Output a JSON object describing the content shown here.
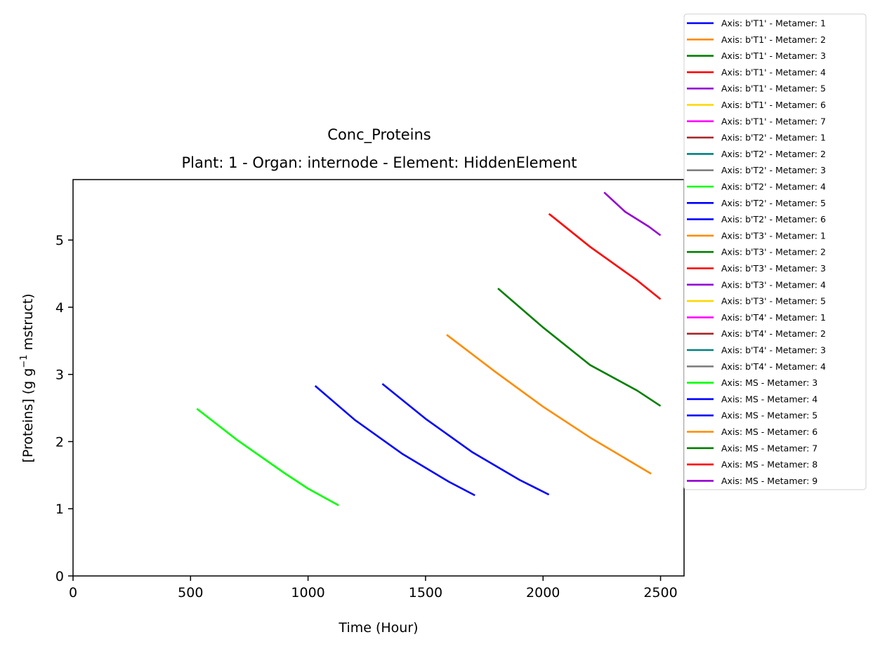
{
  "chart_data": {
    "type": "line",
    "title": "Conc_Proteins",
    "subtitle": "Plant: 1 - Organ: internode - Element: HiddenElement",
    "xlabel": "Time (Hour)",
    "ylabel_main": "[Proteins] (g g",
    "ylabel_sup": "−1",
    "ylabel_tail": " mstruct)",
    "xlim": [
      0,
      2600
    ],
    "ylim": [
      0,
      5.9
    ],
    "xticks": [
      0,
      500,
      1000,
      1500,
      2000,
      2500
    ],
    "yticks": [
      0,
      1,
      2,
      3,
      4,
      5
    ],
    "grid": false,
    "legend_position": "outside-right",
    "legend": [
      {
        "label": "Axis: b'T1' - Metamer: 1",
        "color": "#0000ff"
      },
      {
        "label": "Axis: b'T1' - Metamer: 2",
        "color": "#ff8c00"
      },
      {
        "label": "Axis: b'T1' - Metamer: 3",
        "color": "#008000"
      },
      {
        "label": "Axis: b'T1' - Metamer: 4",
        "color": "#ff0000"
      },
      {
        "label": "Axis: b'T1' - Metamer: 5",
        "color": "#9400d3"
      },
      {
        "label": "Axis: b'T1' - Metamer: 6",
        "color": "#ffd700"
      },
      {
        "label": "Axis: b'T1' - Metamer: 7",
        "color": "#ff00ff"
      },
      {
        "label": "Axis: b'T2' - Metamer: 1",
        "color": "#a52a2a"
      },
      {
        "label": "Axis: b'T2' - Metamer: 2",
        "color": "#008080"
      },
      {
        "label": "Axis: b'T2' - Metamer: 3",
        "color": "#808080"
      },
      {
        "label": "Axis: b'T2' - Metamer: 4",
        "color": "#00ff00"
      },
      {
        "label": "Axis: b'T2' - Metamer: 5",
        "color": "#0000ff"
      },
      {
        "label": "Axis: b'T2' - Metamer: 6",
        "color": "#0000ff"
      },
      {
        "label": "Axis: b'T3' - Metamer: 1",
        "color": "#ff8c00"
      },
      {
        "label": "Axis: b'T3' - Metamer: 2",
        "color": "#008000"
      },
      {
        "label": "Axis: b'T3' - Metamer: 3",
        "color": "#ff0000"
      },
      {
        "label": "Axis: b'T3' - Metamer: 4",
        "color": "#9400d3"
      },
      {
        "label": "Axis: b'T3' - Metamer: 5",
        "color": "#ffd700"
      },
      {
        "label": "Axis: b'T4' - Metamer: 1",
        "color": "#ff00ff"
      },
      {
        "label": "Axis: b'T4' - Metamer: 2",
        "color": "#a52a2a"
      },
      {
        "label": "Axis: b'T4' - Metamer: 3",
        "color": "#008080"
      },
      {
        "label": "Axis: b'T4' - Metamer: 4",
        "color": "#808080"
      },
      {
        "label": "Axis: MS - Metamer: 3",
        "color": "#00ff00"
      },
      {
        "label": "Axis: MS - Metamer: 4",
        "color": "#0000ff"
      },
      {
        "label": "Axis: MS - Metamer: 5",
        "color": "#0000ff"
      },
      {
        "label": "Axis: MS - Metamer: 6",
        "color": "#ff8c00"
      },
      {
        "label": "Axis: MS - Metamer: 7",
        "color": "#008000"
      },
      {
        "label": "Axis: MS - Metamer: 8",
        "color": "#ff0000"
      },
      {
        "label": "Axis: MS - Metamer: 9",
        "color": "#9400d3"
      }
    ],
    "series": [
      {
        "name": "Axis: MS - Metamer: 3",
        "color": "#00ff00",
        "x": [
          527,
          700,
          900,
          1000,
          1130
        ],
        "y": [
          2.49,
          2.02,
          1.53,
          1.3,
          1.05
        ]
      },
      {
        "name": "Axis: MS - Metamer: 4",
        "color": "#0000ff",
        "x": [
          1030,
          1200,
          1400,
          1600,
          1710
        ],
        "y": [
          2.83,
          2.32,
          1.82,
          1.4,
          1.2
        ]
      },
      {
        "name": "Axis: MS - Metamer: 5",
        "color": "#0000ff",
        "x": [
          1316,
          1500,
          1700,
          1900,
          2025
        ],
        "y": [
          2.86,
          2.34,
          1.84,
          1.43,
          1.21
        ]
      },
      {
        "name": "Axis: MS - Metamer: 6",
        "color": "#ff8c00",
        "x": [
          1590,
          1800,
          2000,
          2200,
          2460
        ],
        "y": [
          3.59,
          3.03,
          2.52,
          2.06,
          1.52
        ]
      },
      {
        "name": "Axis: MS - Metamer: 7",
        "color": "#008000",
        "x": [
          1808,
          2000,
          2200,
          2400,
          2500
        ],
        "y": [
          4.28,
          3.7,
          3.14,
          2.76,
          2.53
        ]
      },
      {
        "name": "Axis: MS - Metamer: 8",
        "color": "#ff0000",
        "x": [
          2025,
          2040,
          2200,
          2400,
          2500
        ],
        "y": [
          5.39,
          5.35,
          4.9,
          4.4,
          4.12
        ]
      },
      {
        "name": "Axis: MS - Metamer: 9",
        "color": "#9400d3",
        "x": [
          2260,
          2350,
          2450,
          2500
        ],
        "y": [
          5.71,
          5.42,
          5.2,
          5.07
        ]
      }
    ]
  }
}
